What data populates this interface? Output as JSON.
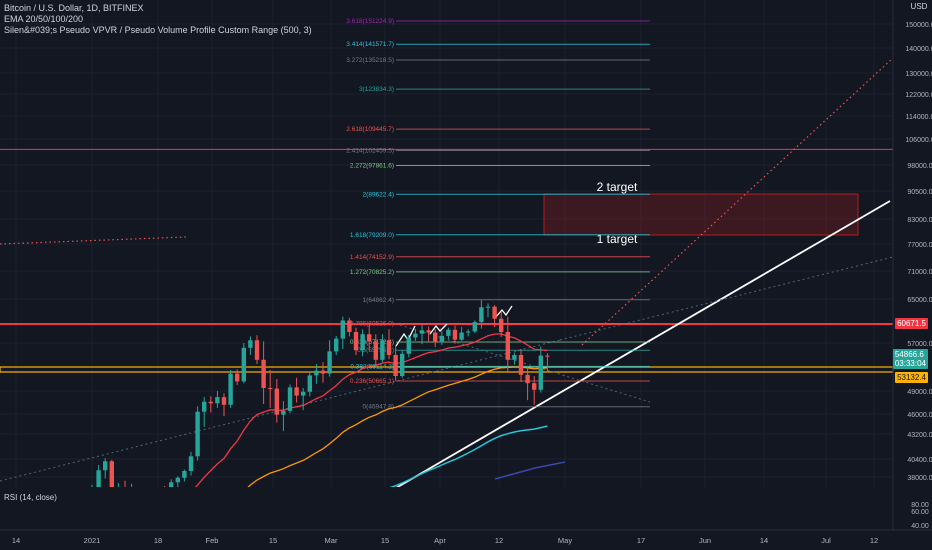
{
  "header": {
    "symbol_line": "Bitcoin / U.S. Dollar, 1D, BITFINEX",
    "ema_line": "EMA 20/50/100/200",
    "vpvr_line": "Silen&#039;s Pseudo VPVR / Pseudo Volume Profile Custom Range (500, 3)",
    "currency": "USD"
  },
  "rsi": {
    "label": "RSI (14, close)",
    "levels": [
      "80.00",
      "60.00",
      "40.00"
    ]
  },
  "price_labels": {
    "resistance": "60671.5",
    "current_price": "54866.6",
    "countdown": "03:33:04",
    "yellow_line": "53132.4"
  },
  "annotations": {
    "target1": "1 target",
    "target2": "2 target"
  },
  "colors": {
    "background": "#131722",
    "up": "#26a69a",
    "down": "#ef5350",
    "ema20": "#f23645",
    "ema50": "#ff9800",
    "ema100": "#26c6da",
    "ema200": "#2a2e8f",
    "resistance": "#f23645",
    "support": "#ffb300",
    "rsi": "#ff9800",
    "rsi_band": "#7e57c2",
    "trendline": "#ffffff",
    "target_box": "#b71c1c"
  },
  "chart_data": {
    "type": "candlestick",
    "symbol": "BTCUSD",
    "timeframe": "1D",
    "y_axis": [
      "150000.0",
      "140000.0",
      "130000.0",
      "122000.0",
      "114000.0",
      "106000.0",
      "98000.0",
      "90500.0",
      "83000.0",
      "77000.0",
      "71000.0",
      "65000.0",
      "57000.0",
      "49000.0",
      "46000.0",
      "43200.0",
      "40400.0",
      "38000.0"
    ],
    "x_axis": [
      "14",
      "2021",
      "18",
      "Feb",
      "15",
      "Mar",
      "15",
      "Apr",
      "12",
      "May",
      "17",
      "Jun",
      "14",
      "Jul",
      "12"
    ],
    "fib_levels": [
      {
        "label": "3.618(151224.9)",
        "price": 151224.9,
        "color": "#9c27b0"
      },
      {
        "label": "3.414(141571.7)",
        "price": 141571.7,
        "color": "#26c6da"
      },
      {
        "label": "3.272(135218.5)",
        "price": 135218.5,
        "color": "#787b86"
      },
      {
        "label": "3(123834.3)",
        "price": 123834.3,
        "color": "#26a69a"
      },
      {
        "label": "2.618(109445.7)",
        "price": 109445.7,
        "color": "#ef5350"
      },
      {
        "label": "2.414(102459.5)",
        "price": 102459.5,
        "color": "#787b86"
      },
      {
        "label": "2.272(97861.6)",
        "price": 97861.6,
        "color": "#81c784"
      },
      {
        "label": "2(89622.4)",
        "price": 89622.4,
        "color": "#26c6da"
      },
      {
        "label": "1.618(79209.0)",
        "price": 79209.0,
        "color": "#26c6da"
      },
      {
        "label": "1.414(74152.9)",
        "price": 74152.9,
        "color": "#ef5350"
      },
      {
        "label": "1.272(70825.2)",
        "price": 70825.2,
        "color": "#81c784"
      },
      {
        "label": "1(64862.4)",
        "price": 64862.4,
        "color": "#787b86"
      },
      {
        "label": "0.786(60526.0)",
        "price": 60526.0,
        "color": "#ef5350"
      },
      {
        "label": "0.618(57172.4)",
        "price": 57172.4,
        "color": "#81c784"
      },
      {
        "label": "0.5(55796.2)",
        "price": 55796.2,
        "color": "#26a69a"
      },
      {
        "label": "0.382(53114.2)",
        "price": 53114.2,
        "color": "#26c6da"
      },
      {
        "label": "0.236(50665.1)",
        "price": 50665.1,
        "color": "#ef5350"
      },
      {
        "label": "0(46947.8)",
        "price": 46947.8,
        "color": "#787b86"
      }
    ],
    "levels": {
      "resistance": 60671.5,
      "support": 53132.4,
      "top_line": 102800
    },
    "current_price": 54866.6,
    "target_zone": {
      "low": 79209.0,
      "high": 89622.4
    },
    "candles": [
      [
        36100,
        36950,
        35300,
        36500
      ],
      [
        36500,
        39600,
        36200,
        38900
      ],
      [
        38900,
        40500,
        37800,
        40100
      ],
      [
        40100,
        40300,
        34900,
        35200
      ],
      [
        35200,
        37200,
        33800,
        36600
      ],
      [
        36600,
        37500,
        35600,
        36100
      ],
      [
        36100,
        37100,
        33200,
        33600
      ],
      [
        33600,
        34400,
        32400,
        33100
      ],
      [
        33100,
        34500,
        32800,
        34200
      ],
      [
        34200,
        34900,
        32600,
        33700
      ],
      [
        33700,
        36200,
        33400,
        35600
      ],
      [
        35600,
        36800,
        34300,
        34500
      ],
      [
        34500,
        37700,
        34100,
        37300
      ],
      [
        37300,
        38100,
        36300,
        37900
      ],
      [
        37900,
        39000,
        37400,
        38800
      ],
      [
        38800,
        41200,
        38200,
        40700
      ],
      [
        40700,
        47000,
        40200,
        46300
      ],
      [
        46300,
        48200,
        44200,
        47600
      ],
      [
        47600,
        48300,
        46200,
        47400
      ],
      [
        47400,
        49000,
        46800,
        48200
      ],
      [
        48200,
        48700,
        45700,
        47200
      ],
      [
        47200,
        52500,
        46800,
        51900
      ],
      [
        51900,
        52600,
        50000,
        50600
      ],
      [
        50600,
        57000,
        50300,
        56200
      ],
      [
        56200,
        58200,
        55000,
        57500
      ],
      [
        57500,
        58400,
        53500,
        54200
      ],
      [
        54200,
        57300,
        47300,
        49500
      ],
      [
        49500,
        52500,
        46800,
        49400
      ],
      [
        49400,
        51000,
        44800,
        45900
      ],
      [
        45900,
        47700,
        43600,
        46400
      ],
      [
        46400,
        50100,
        46100,
        49600
      ],
      [
        49600,
        51200,
        47500,
        48400
      ],
      [
        48400,
        49500,
        46500,
        48900
      ],
      [
        48900,
        52200,
        48300,
        51600
      ],
      [
        51600,
        53500,
        50200,
        52400
      ],
      [
        52400,
        53800,
        50400,
        51900
      ],
      [
        51900,
        57500,
        51400,
        55600
      ],
      [
        55600,
        58300,
        55000,
        57800
      ],
      [
        57800,
        61800,
        56000,
        61100
      ],
      [
        61100,
        61600,
        58200,
        59000
      ],
      [
        59000,
        59800,
        55000,
        55800
      ],
      [
        55800,
        59500,
        54800,
        58600
      ],
      [
        58600,
        60500,
        55700,
        57300
      ],
      [
        57300,
        58600,
        52900,
        54200
      ],
      [
        54200,
        58600,
        53800,
        57500
      ],
      [
        57500,
        59500,
        54300,
        55000
      ],
      [
        55000,
        56500,
        50700,
        51500
      ],
      [
        51500,
        55800,
        51200,
        55200
      ],
      [
        55200,
        58500,
        54600,
        58000
      ],
      [
        58000,
        59500,
        57400,
        58700
      ],
      [
        58700,
        60300,
        56800,
        59300
      ],
      [
        59300,
        60000,
        57300,
        58900
      ],
      [
        58900,
        59500,
        56300,
        57100
      ],
      [
        57100,
        59200,
        56700,
        58300
      ],
      [
        58300,
        59800,
        57700,
        59400
      ],
      [
        59400,
        60200,
        56900,
        57600
      ],
      [
        57600,
        59900,
        57400,
        58900
      ],
      [
        58900,
        59500,
        58200,
        59100
      ],
      [
        59100,
        61100,
        58800,
        60800
      ],
      [
        60800,
        64900,
        59600,
        63500
      ],
      [
        63500,
        64200,
        61700,
        63600
      ],
      [
        63600,
        63900,
        59900,
        61400
      ],
      [
        61400,
        62700,
        58100,
        59000
      ],
      [
        59000,
        61800,
        52000,
        54200
      ],
      [
        54200,
        55400,
        53400,
        55000
      ],
      [
        55000,
        56000,
        50500,
        51700
      ],
      [
        51700,
        53000,
        47800,
        50300
      ],
      [
        50300,
        51500,
        47200,
        49200
      ],
      [
        49200,
        56400,
        48800,
        54900
      ],
      [
        54900,
        55300,
        52100,
        54866.6
      ]
    ]
  }
}
